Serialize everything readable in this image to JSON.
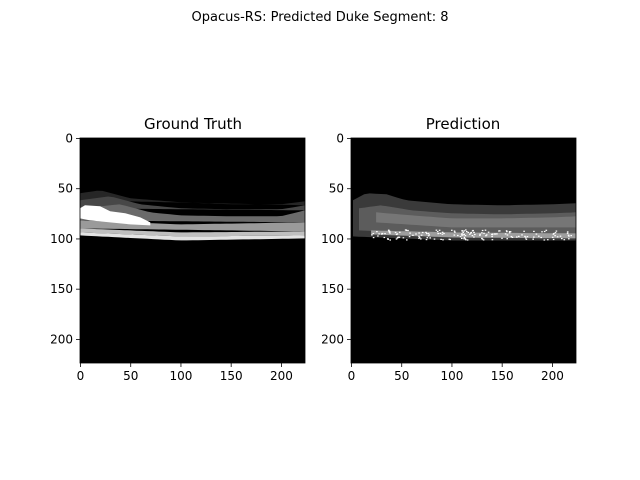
{
  "figure": {
    "suptitle": "Opacus-RS: Predicted Duke Segment: 8"
  },
  "chart_data": [
    {
      "type": "heatmap",
      "title": "Ground Truth",
      "image_size": [
        224,
        224
      ],
      "colormap": "gray",
      "xlim": [
        0,
        224
      ],
      "ylim": [
        224,
        0
      ],
      "xticks": [
        0,
        50,
        100,
        150,
        200
      ],
      "yticks": [
        0,
        50,
        100,
        150,
        200
      ],
      "background": "#000000",
      "regions": [
        {
          "shade": "#262626",
          "top": [
            [
              0,
              55
            ],
            [
              20,
              52
            ],
            [
              50,
              60
            ],
            [
              100,
              64
            ],
            [
              150,
              66
            ],
            [
              200,
              66
            ],
            [
              224,
              63
            ]
          ],
          "bottom": [
            [
              0,
              62
            ],
            [
              224,
              67
            ]
          ]
        },
        {
          "shade": "#474747",
          "top": [
            [
              0,
              62
            ],
            [
              30,
              58
            ],
            [
              60,
              66
            ],
            [
              100,
              70
            ],
            [
              150,
              71
            ],
            [
              200,
              71
            ],
            [
              224,
              67
            ]
          ],
          "bottom": [
            [
              0,
              70
            ],
            [
              224,
              72
            ]
          ]
        },
        {
          "shade": "#6a6a6a",
          "top": [
            [
              0,
              70
            ],
            [
              40,
              66
            ],
            [
              70,
              74
            ],
            [
              100,
              77
            ],
            [
              150,
              78
            ],
            [
              200,
              78
            ],
            [
              224,
              72
            ]
          ],
          "bottom": [
            [
              0,
              82
            ],
            [
              224,
              84
            ]
          ]
        },
        {
          "shade": "#9a9a9a",
          "top": [
            [
              0,
              82
            ],
            [
              100,
              86
            ],
            [
              224,
              84
            ]
          ],
          "bottom": [
            [
              0,
              90
            ],
            [
              224,
              93
            ]
          ]
        },
        {
          "shade": "#bfbfbf",
          "top": [
            [
              0,
              90
            ],
            [
              100,
              94
            ],
            [
              224,
              93
            ]
          ],
          "bottom": [
            [
              0,
              94
            ],
            [
              100,
              98
            ],
            [
              224,
              97
            ]
          ]
        },
        {
          "shade": "#e3e3e3",
          "top": [
            [
              0,
              94
            ],
            [
              100,
              98
            ],
            [
              224,
              97
            ]
          ],
          "bottom": [
            [
              0,
              97
            ],
            [
              100,
              102
            ],
            [
              224,
              100
            ]
          ]
        },
        {
          "shade": "#ffffff",
          "top": [
            [
              0,
              70
            ],
            [
              5,
              67
            ],
            [
              20,
              68
            ],
            [
              30,
              73
            ],
            [
              45,
              75
            ],
            [
              60,
              79
            ],
            [
              70,
              84
            ]
          ],
          "bottom": [
            [
              70,
              87
            ],
            [
              50,
              86
            ],
            [
              30,
              84
            ],
            [
              10,
              82
            ],
            [
              0,
              80
            ]
          ]
        }
      ]
    },
    {
      "type": "heatmap",
      "title": "Prediction",
      "image_size": [
        224,
        224
      ],
      "colormap": "gray",
      "xlim": [
        0,
        224
      ],
      "ylim": [
        224,
        0
      ],
      "xticks": [
        0,
        50,
        100,
        150,
        200
      ],
      "yticks": [
        0,
        50,
        100,
        150,
        200
      ],
      "background": "#000000",
      "regions": [
        {
          "shade": "#3a3a3a",
          "top": [
            [
              2,
              62
            ],
            [
              15,
              55
            ],
            [
              35,
              56
            ],
            [
              55,
              62
            ],
            [
              100,
              66
            ],
            [
              150,
              67
            ],
            [
              200,
              66
            ],
            [
              224,
              65
            ]
          ],
          "bottom": [
            [
              2,
              98
            ],
            [
              100,
              102
            ],
            [
              224,
              102
            ]
          ]
        },
        {
          "shade": "#5c5c5c",
          "top": [
            [
              8,
              70
            ],
            [
              30,
              67
            ],
            [
              60,
              72
            ],
            [
              100,
              75
            ],
            [
              150,
              76
            ],
            [
              200,
              75
            ],
            [
              224,
              74
            ]
          ],
          "bottom": [
            [
              8,
              92
            ],
            [
              100,
              96
            ],
            [
              224,
              96
            ]
          ]
        },
        {
          "shade": "#767676",
          "top": [
            [
              25,
              74
            ],
            [
              60,
              77
            ],
            [
              100,
              80
            ],
            [
              150,
              80
            ],
            [
              200,
              79
            ],
            [
              224,
              78
            ]
          ],
          "bottom": [
            [
              25,
              84
            ],
            [
              100,
              89
            ],
            [
              224,
              89
            ]
          ]
        },
        {
          "shade": "#9e9e9e",
          "top": [
            [
              20,
              92
            ],
            [
              100,
              94
            ],
            [
              224,
              95
            ]
          ],
          "bottom": [
            [
              20,
              96
            ],
            [
              100,
              99
            ],
            [
              224,
              100
            ]
          ]
        }
      ],
      "speckle": {
        "shade": "#ffffff",
        "x_range": [
          20,
          224
        ],
        "y_center": 96,
        "spread": 5
      }
    }
  ]
}
